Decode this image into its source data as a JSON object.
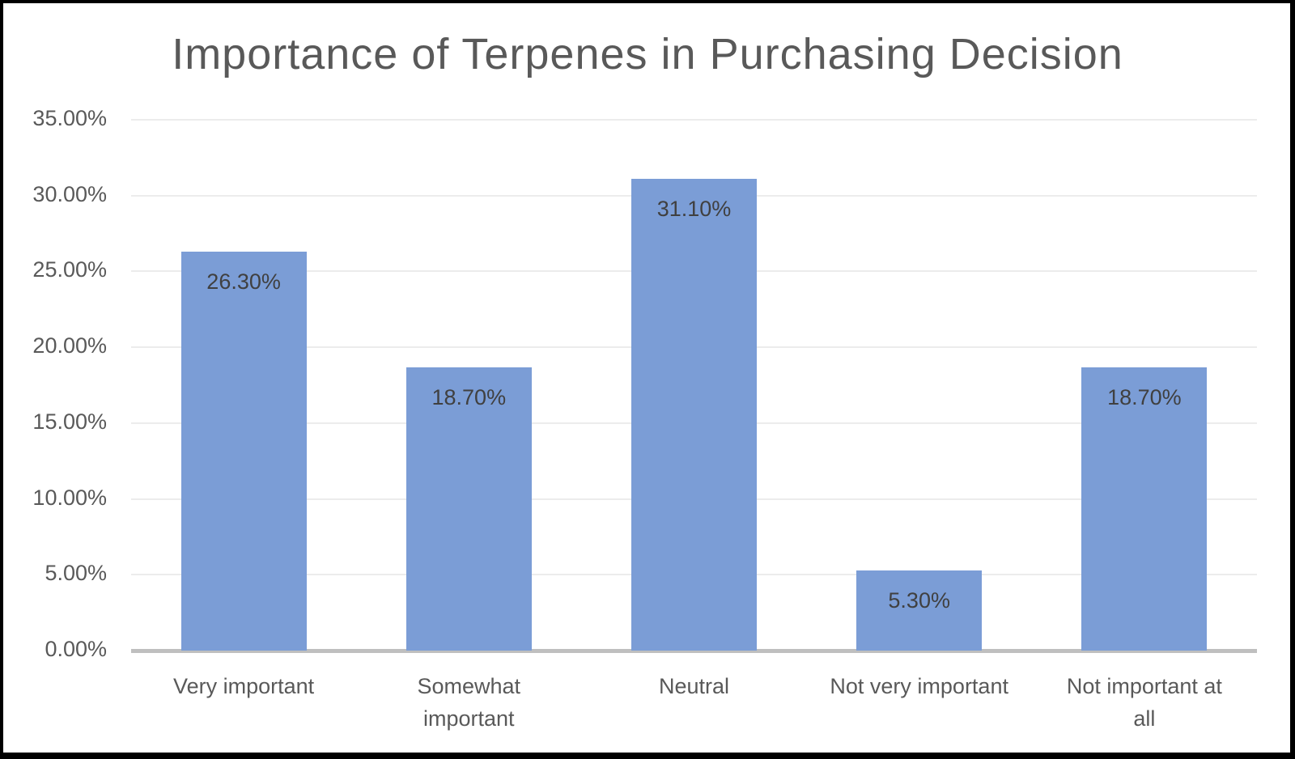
{
  "chart_data": {
    "type": "bar",
    "title": "Importance of Terpenes in Purchasing Decision",
    "xlabel": "",
    "ylabel": "",
    "categories": [
      "Very important",
      "Somewhat important",
      "Neutral",
      "Not very important",
      "Not important at all"
    ],
    "category_lines": [
      [
        "Very important"
      ],
      [
        "Somewhat",
        "important"
      ],
      [
        "Neutral"
      ],
      [
        "Not very important"
      ],
      [
        "Not important at",
        "all"
      ]
    ],
    "values": [
      26.3,
      18.7,
      31.1,
      5.3,
      18.7
    ],
    "data_labels": [
      "26.30%",
      "18.70%",
      "31.10%",
      "5.30%",
      "18.70%"
    ],
    "ylim": [
      0,
      35
    ],
    "yticks": [
      0,
      5,
      10,
      15,
      20,
      25,
      30,
      35
    ],
    "ytick_labels": [
      "0.00%",
      "5.00%",
      "10.00%",
      "15.00%",
      "20.00%",
      "25.00%",
      "30.00%",
      "35.00%"
    ],
    "grid": true,
    "legend": null,
    "colors": {
      "bar": "#7b9dd6",
      "gridline": "#ececec",
      "axis": "#bfbfbf",
      "text": "#595959",
      "label_text": "#404040"
    }
  }
}
